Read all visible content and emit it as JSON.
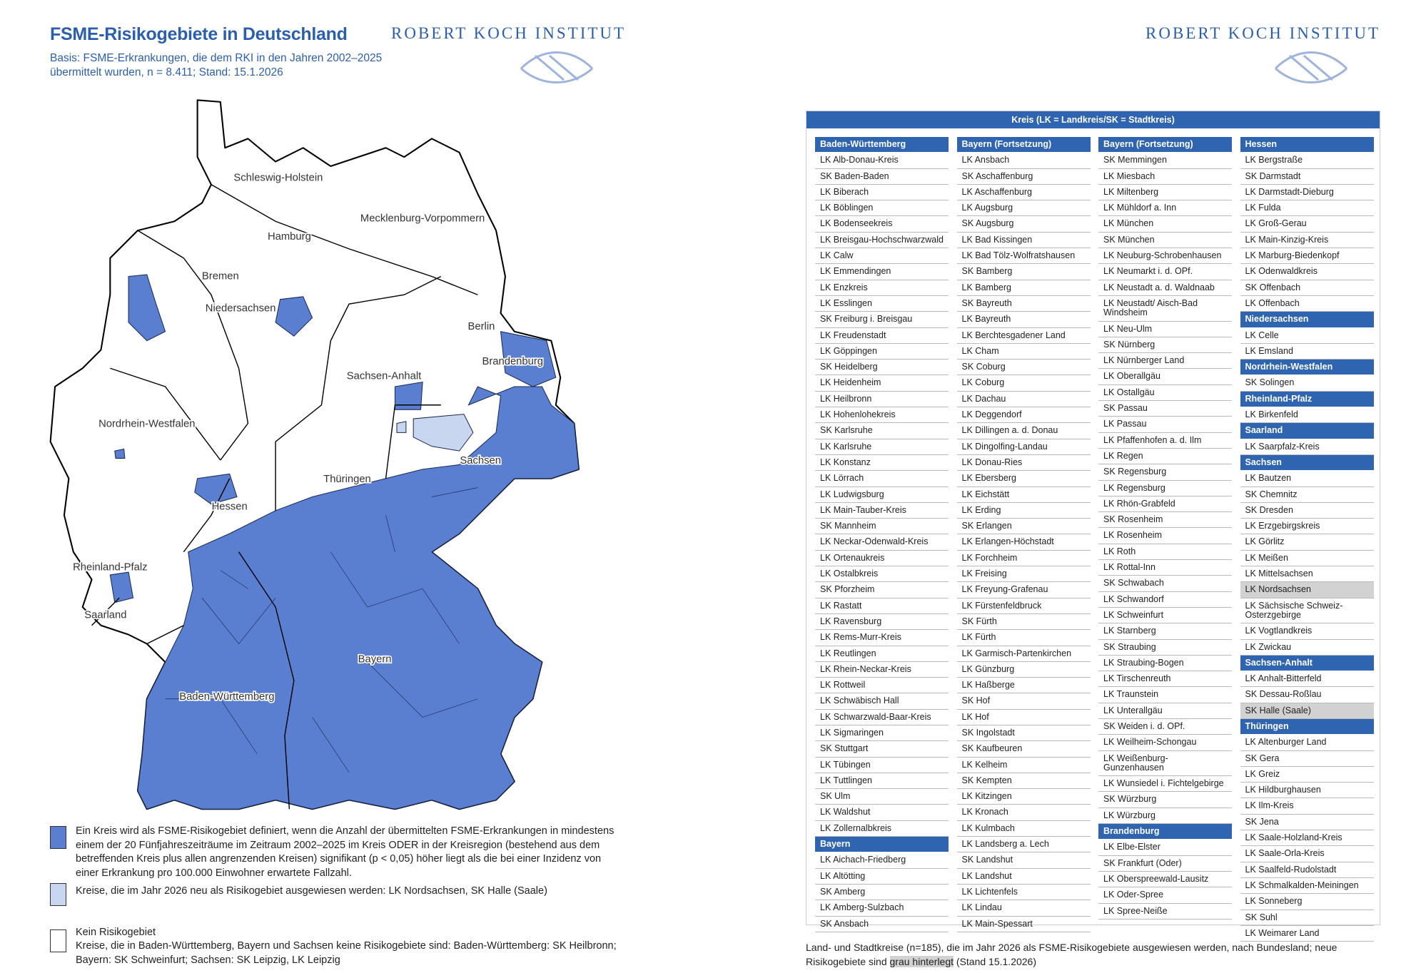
{
  "header": {
    "title": "FSME-Risikogebiete in Deutschland",
    "subtitle_lines": [
      "Basis: FSME-Erkrankungen, die dem RKI in den Jahren 2002–2025",
      "übermittelt wurden, n = 8.411; Stand: 15.1.2026"
    ],
    "logo_text": "ROBERT KOCH INSTITUT"
  },
  "map": {
    "state_labels": [
      "Schleswig-Holstein",
      "Hamburg",
      "Mecklenburg-Vorpommern",
      "Bremen",
      "Niedersachsen",
      "Berlin",
      "Brandenburg",
      "Sachsen-Anhalt",
      "Nordrhein-Westfalen",
      "Sachsen",
      "Thüringen",
      "Hessen",
      "Rheinland-Pfalz",
      "Saarland",
      "Bayern",
      "Baden-Württemberg"
    ]
  },
  "legend": [
    {
      "text": "Ein Kreis wird als FSME-Risikogebiet definiert, wenn die Anzahl der übermittelten FSME-Erkrankungen in mindestens einem der 20 Fünfjahreszeiträume im Zeitraum 2002–2025 im Kreis ODER in der Kreisregion (bestehend aus dem betreffenden Kreis plus allen angrenzenden Kreisen) signifikant (p < 0,05) höher liegt als die bei einer Inzidenz von einer Erkrankung pro 100.000 Einwohner erwartete Fallzahl.",
      "color": "#5a7fd0"
    },
    {
      "text": "Kreise, die im Jahr 2026 neu als Risikogebiet ausgewiesen werden: LK Nordsachsen, SK Halle (Saale)",
      "color": "#c9d6f0"
    },
    {
      "title": "Kein Risikogebiet",
      "text": "Kreise, die in Baden-Württemberg, Bayern und Sachsen keine Risikogebiete sind: Baden-Württemberg: SK Heilbronn; Bayern: SK Schweinfurt; Sachsen: SK Leipzig, LK Leipzig",
      "color": "#ffffff"
    }
  ],
  "table": {
    "title": "Kreis (LK = Landkreis/SK = Stadtkreis)",
    "highlight_color": "#d2d2d2",
    "columns": [
      [
        {
          "state": "Baden-Württemberg",
          "districts": [
            "LK Alb-Donau-Kreis",
            "SK Baden-Baden",
            "LK Biberach",
            "LK Böblingen",
            "LK Bodenseekreis",
            "LK Breisgau-Hochschwarzwald",
            "LK Calw",
            "LK Emmendingen",
            "LK Enzkreis",
            "LK Esslingen",
            "SK Freiburg i. Breisgau",
            "LK Freudenstadt",
            "LK Göppingen",
            "SK Heidelberg",
            "LK Heidenheim",
            "LK Heilbronn",
            "LK Hohenlohekreis",
            "SK Karlsruhe",
            "LK Karlsruhe",
            "LK Konstanz",
            "LK Lörrach",
            "LK Ludwigsburg",
            "LK Main-Tauber-Kreis",
            "SK Mannheim",
            "LK Neckar-Odenwald-Kreis",
            "LK Ortenaukreis",
            "LK Ostalbkreis",
            "SK Pforzheim",
            "LK Rastatt",
            "LK Ravensburg",
            "LK Rems-Murr-Kreis",
            "LK Reutlingen",
            "LK Rhein-Neckar-Kreis",
            "LK Rottweil",
            "LK Schwäbisch Hall",
            "LK Schwarzwald-Baar-Kreis",
            "LK Sigmaringen",
            "SK Stuttgart",
            "LK Tübingen",
            "LK Tuttlingen",
            "SK Ulm",
            "LK Waldshut",
            "LK Zollernalbkreis"
          ]
        },
        {
          "state": "Bayern",
          "districts": [
            "LK Aichach-Friedberg",
            "LK Altötting",
            "SK Amberg",
            "LK Amberg-Sulzbach",
            "SK Ansbach"
          ]
        }
      ],
      [
        {
          "state": "Bayern (Fortsetzung)",
          "districts": [
            "LK Ansbach",
            "SK Aschaffenburg",
            "LK Aschaffenburg",
            "LK Augsburg",
            "SK Augsburg",
            "LK Bad Kissingen",
            "LK Bad Tölz-Wolfratshausen",
            "SK Bamberg",
            "LK Bamberg",
            "SK Bayreuth",
            "LK Bayreuth",
            "LK Berchtesgadener Land",
            "LK Cham",
            "SK Coburg",
            "LK Coburg",
            "LK Dachau",
            "LK Deggendorf",
            "LK Dillingen a. d. Donau",
            "LK Dingolfing-Landau",
            "LK Donau-Ries",
            "LK Ebersberg",
            "LK Eichstätt",
            "LK Erding",
            "SK Erlangen",
            "LK Erlangen-Höchstadt",
            "LK Forchheim",
            "LK Freising",
            "LK Freyung-Grafenau",
            "LK Fürstenfeldbruck",
            "SK Fürth",
            "LK Fürth",
            "LK Garmisch-Partenkirchen",
            "LK Günzburg",
            "LK Haßberge",
            "SK Hof",
            "LK Hof",
            "SK Ingolstadt",
            "SK Kaufbeuren",
            "LK Kelheim",
            "SK Kempten",
            "LK Kitzingen",
            "LK Kronach",
            "LK Kulmbach",
            "LK Landsberg a. Lech",
            "SK Landshut",
            "LK Landshut",
            "LK Lichtenfels",
            "LK Lindau",
            "LK Main-Spessart"
          ]
        }
      ],
      [
        {
          "state": "Bayern (Fortsetzung)",
          "districts": [
            "SK Memmingen",
            "LK Miesbach",
            "LK Miltenberg",
            "LK Mühldorf a. Inn",
            "LK München",
            "SK München",
            "LK Neuburg-Schrobenhausen",
            "LK Neumarkt i. d. OPf.",
            "LK Neustadt a. d. Waldnaab",
            "LK Neustadt/ Aisch-Bad Windsheim",
            "LK Neu-Ulm",
            "SK Nürnberg",
            "LK Nürnberger Land",
            "LK Oberallgäu",
            "LK Ostallgäu",
            "SK Passau",
            "LK Passau",
            "LK Pfaffenhofen a. d. Ilm",
            "LK Regen",
            "SK Regensburg",
            "LK Regensburg",
            "LK Rhön-Grabfeld",
            "SK Rosenheim",
            "LK Rosenheim",
            "LK Roth",
            "LK Rottal-Inn",
            "SK Schwabach",
            "LK Schwandorf",
            "LK Schweinfurt",
            "LK Starnberg",
            "SK Straubing",
            "LK Straubing-Bogen",
            "LK Tirschenreuth",
            "LK Traunstein",
            "LK Unterallgäu",
            "SK Weiden i. d. OPf.",
            "LK Weilheim-Schongau",
            "LK Weißenburg-Gunzenhausen",
            "LK Wunsiedel i. Fichtelgebirge",
            "SK Würzburg",
            "LK Würzburg"
          ]
        },
        {
          "state": "Brandenburg",
          "districts": [
            "LK Elbe-Elster",
            "SK Frankfurt (Oder)",
            "LK Oberspreewald-Lausitz",
            "LK Oder-Spree",
            "LK Spree-Neiße"
          ]
        }
      ],
      [
        {
          "state": "Hessen",
          "districts": [
            "LK Bergstraße",
            "SK Darmstadt",
            "LK Darmstadt-Dieburg",
            "LK Fulda",
            "LK Groß-Gerau",
            "LK Main-Kinzig-Kreis",
            "LK Marburg-Biedenkopf",
            "LK Odenwaldkreis",
            "SK Offenbach",
            "LK Offenbach"
          ]
        },
        {
          "state": "Niedersachsen",
          "districts": [
            "LK Celle",
            "LK Emsland"
          ]
        },
        {
          "state": "Nordrhein-Westfalen",
          "districts": [
            "SK Solingen"
          ]
        },
        {
          "state": "Rheinland-Pfalz",
          "districts": [
            "LK Birkenfeld"
          ]
        },
        {
          "state": "Saarland",
          "districts": [
            "LK Saarpfalz-Kreis"
          ]
        },
        {
          "state": "Sachsen",
          "districts": [
            "LK Bautzen",
            "SK Chemnitz",
            "SK Dresden",
            "LK Erzgebirgskreis",
            "LK Görlitz",
            "LK Meißen",
            "LK Mittelsachsen",
            "LK Nordsachsen",
            "LK Sächsische Schweiz-Osterzgebirge",
            "LK Vogtlandkreis",
            "LK Zwickau"
          ],
          "new": [
            7
          ]
        },
        {
          "state": "Sachsen-Anhalt",
          "districts": [
            "LK Anhalt-Bitterfeld",
            "SK Dessau-Roßlau",
            "SK Halle (Saale)"
          ],
          "new": [
            2
          ]
        },
        {
          "state": "Thüringen",
          "districts": [
            "LK Altenburger Land",
            "SK Gera",
            "LK Greiz",
            "LK Hildburghausen",
            "LK Ilm-Kreis",
            "SK Jena",
            "LK Saale-Holzland-Kreis",
            "LK Saale-Orla-Kreis",
            "LK Saalfeld-Rudolstadt",
            "LK Schmalkalden-Meiningen",
            "LK Sonneberg",
            "SK Suhl",
            "LK Weimarer Land"
          ]
        }
      ]
    ]
  },
  "caption": {
    "text": "Land- und Stadtkreise (n=185), die im Jahr 2026 als FSME-Risikogebiete ausgewiesen werden, nach Bundesland; neue Risikogebiete sind",
    "highlight": "grau hinterlegt",
    "stand": "(Stand 15.1.2026)"
  }
}
